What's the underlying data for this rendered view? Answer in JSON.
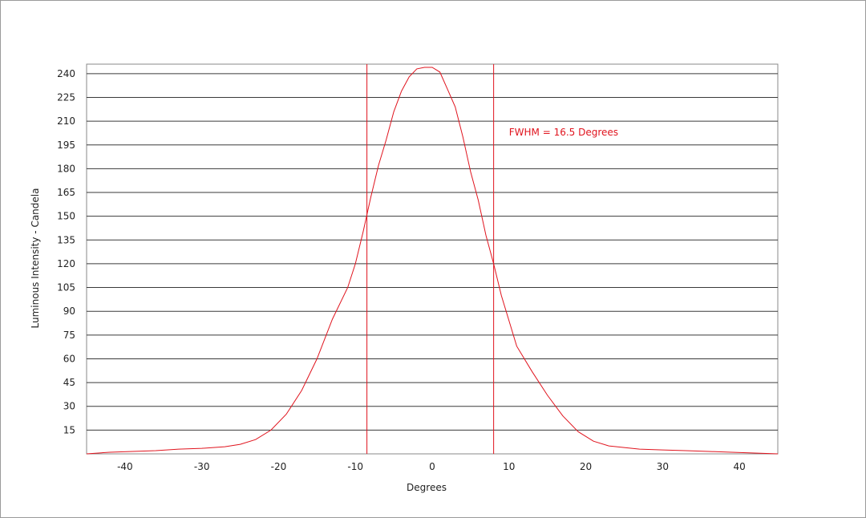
{
  "chart_data": {
    "type": "line",
    "title": "",
    "xlabel": "Degrees",
    "ylabel": "Luminous Intensity - Candela",
    "xlim": [
      -45,
      45
    ],
    "ylim": [
      0,
      246
    ],
    "x_ticks": [
      -40,
      -30,
      -20,
      -10,
      0,
      10,
      20,
      30,
      40
    ],
    "y_ticks": [
      15,
      30,
      45,
      60,
      75,
      90,
      105,
      120,
      135,
      150,
      165,
      180,
      195,
      210,
      225,
      240
    ],
    "grid": "horizontal",
    "line_color": "#e0141e",
    "series": [
      {
        "x": [
          -45,
          -42,
          -39,
          -36,
          -33,
          -30,
          -27,
          -25,
          -23,
          -21,
          -19,
          -17,
          -15,
          -13,
          -11,
          -10,
          -9,
          -8,
          -7,
          -6,
          -5,
          -4,
          -3,
          -2,
          -1,
          0,
          1,
          2,
          3,
          4,
          5,
          6,
          7,
          8,
          9,
          10,
          11,
          13,
          15,
          17,
          19,
          21,
          23,
          25,
          27,
          30,
          33,
          36,
          39,
          42,
          45
        ],
        "y": [
          0,
          1,
          1.5,
          2,
          3,
          3.5,
          4.5,
          6,
          9,
          15,
          25,
          40,
          60,
          85,
          105,
          120,
          140,
          162,
          182,
          198,
          216,
          229,
          238,
          243,
          244,
          244,
          241,
          230,
          219,
          200,
          178,
          160,
          138,
          120,
          100,
          84,
          68,
          52,
          37,
          24,
          14,
          8,
          5,
          4,
          3,
          2.5,
          2,
          1.5,
          1,
          0.5,
          0
        ]
      }
    ],
    "vertical_markers": [
      -8.5,
      8
    ],
    "annotations": [
      {
        "text": "FWHM = 16.5 Degrees",
        "x": 10,
        "y": 201
      }
    ]
  }
}
